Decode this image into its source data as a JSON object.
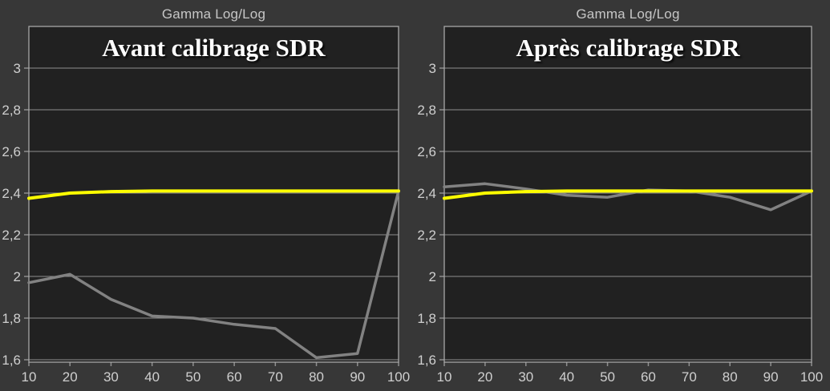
{
  "colors": {
    "background": "#373737",
    "plot_background": "#212121",
    "gridline": "#8f8f8f",
    "plot_border": "#a8a8a8",
    "tick_label": "#cfcfcf",
    "top_label": "#c6c6c6",
    "title": "#ffffff",
    "reference_line": "#ffff00",
    "measured_line": "#828282"
  },
  "chart_data": [
    {
      "type": "line",
      "top_label": "Gamma Log/Log",
      "title": "Avant calibrage SDR",
      "x": [
        10,
        20,
        30,
        40,
        50,
        60,
        70,
        80,
        90,
        100
      ],
      "x_tick_labels": [
        "10",
        "20",
        "30",
        "40",
        "50",
        "60",
        "70",
        "80",
        "90",
        "100"
      ],
      "y_ticks": [
        1.6,
        1.8,
        2.0,
        2.2,
        2.4,
        2.6,
        2.8,
        3.0
      ],
      "y_tick_labels": [
        "1,6",
        "1,8",
        "2",
        "2,2",
        "2,4",
        "2,6",
        "2,8",
        "3"
      ],
      "xlim": [
        10,
        100
      ],
      "ylim": [
        1.6,
        3.2
      ],
      "grid": "horizontal",
      "legend": "none",
      "series": [
        {
          "name": "measured",
          "color": "#828282",
          "values": [
            1.97,
            2.01,
            1.89,
            1.81,
            1.8,
            1.77,
            1.75,
            1.61,
            1.63,
            2.41
          ]
        },
        {
          "name": "reference",
          "color": "#ffff00",
          "values": [
            2.375,
            2.4,
            2.407,
            2.41,
            2.41,
            2.41,
            2.41,
            2.41,
            2.41,
            2.41
          ]
        }
      ]
    },
    {
      "type": "line",
      "top_label": "Gamma Log/Log",
      "title": "Après calibrage SDR",
      "x": [
        10,
        20,
        30,
        40,
        50,
        60,
        70,
        80,
        90,
        100
      ],
      "x_tick_labels": [
        "10",
        "20",
        "30",
        "40",
        "50",
        "60",
        "70",
        "80",
        "90",
        "100"
      ],
      "y_ticks": [
        1.6,
        1.8,
        2.0,
        2.2,
        2.4,
        2.6,
        2.8,
        3.0
      ],
      "y_tick_labels": [
        "1,6",
        "1,8",
        "2",
        "2,2",
        "2,4",
        "2,6",
        "2,8",
        "3"
      ],
      "xlim": [
        10,
        100
      ],
      "ylim": [
        1.6,
        3.2
      ],
      "grid": "horizontal",
      "legend": "none",
      "series": [
        {
          "name": "measured",
          "color": "#828282",
          "values": [
            2.43,
            2.445,
            2.42,
            2.39,
            2.38,
            2.415,
            2.41,
            2.38,
            2.32,
            2.41
          ]
        },
        {
          "name": "reference",
          "color": "#ffff00",
          "values": [
            2.375,
            2.4,
            2.407,
            2.41,
            2.41,
            2.41,
            2.41,
            2.41,
            2.41,
            2.41
          ]
        }
      ]
    }
  ]
}
